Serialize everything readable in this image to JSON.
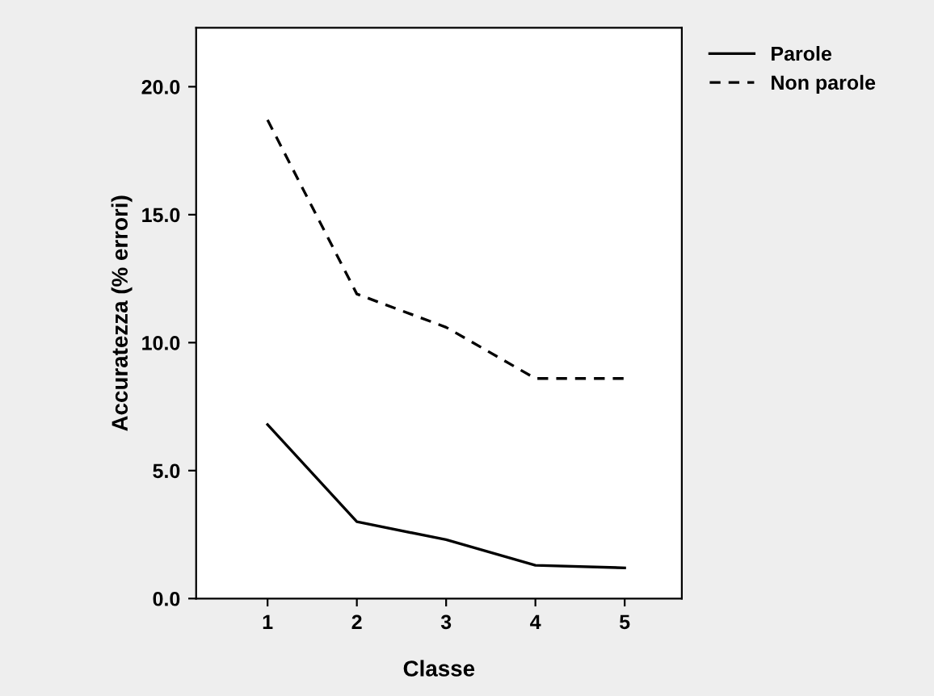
{
  "chart_data": {
    "type": "line",
    "xlabel": "Classe",
    "ylabel": "Accuratezza (% errori)",
    "x": [
      1,
      2,
      3,
      4,
      5
    ],
    "series": [
      {
        "name": "Parole",
        "color": "#000000",
        "values": [
          6.8,
          3.0,
          2.3,
          1.3,
          1.2
        ],
        "line_style": "solid"
      },
      {
        "name": "Non parole",
        "color": "#000000",
        "values": [
          18.7,
          11.9,
          10.6,
          8.6,
          8.6
        ],
        "line_style": "dashed"
      }
    ],
    "xlim": [
      0.2,
      5.64
    ],
    "xticks": [
      1,
      2,
      3,
      4,
      5
    ],
    "ylim": [
      0,
      22.3
    ],
    "yticks": [
      {
        "value": 0,
        "label": "0.0"
      },
      {
        "value": 5,
        "label": "5.0"
      },
      {
        "value": 10,
        "label": "10.0"
      },
      {
        "value": 15,
        "label": "15.0"
      },
      {
        "value": 20,
        "label": "20.0"
      }
    ],
    "grid": false,
    "legend": "top right",
    "marker": "none"
  }
}
